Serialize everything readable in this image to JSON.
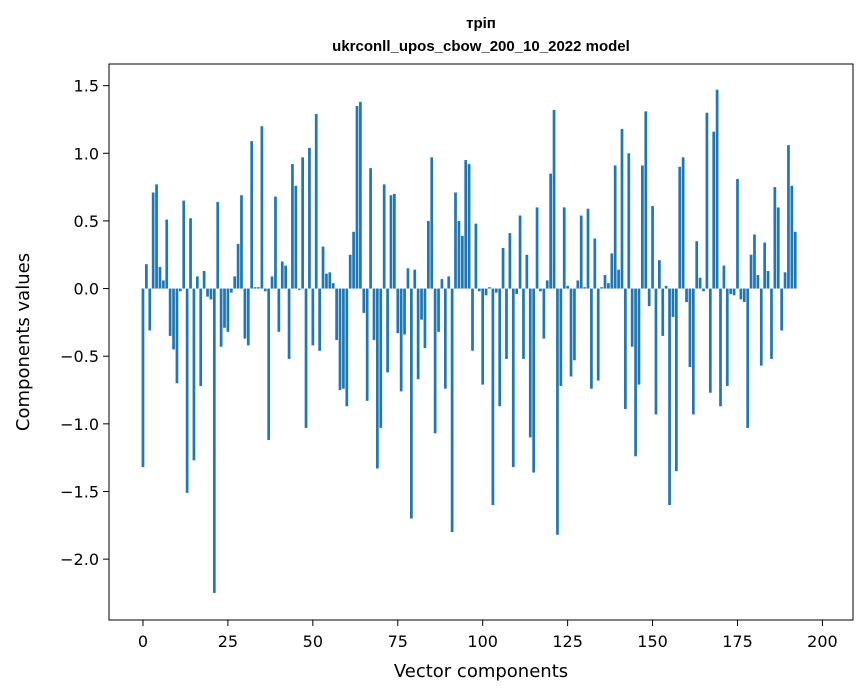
{
  "chart_data": {
    "type": "bar",
    "title": "тріп",
    "subtitle": "ukrconll_upos_cbow_200_10_2022 model",
    "xlabel": "Vector components",
    "ylabel": "Components values",
    "xlim": [
      -10,
      209
    ],
    "ylim": [
      -2.45,
      1.66
    ],
    "xticks": [
      0,
      25,
      50,
      75,
      100,
      125,
      150,
      175,
      200
    ],
    "xtick_labels": [
      "0",
      "25",
      "50",
      "75",
      "100",
      "125",
      "150",
      "175",
      "200"
    ],
    "yticks": [
      1.5,
      1.0,
      0.5,
      0.0,
      -0.5,
      -1.0,
      -1.5,
      -2.0
    ],
    "ytick_labels": [
      "1.5",
      "1.0",
      "0.5",
      "0.0",
      "−0.5",
      "−1.0",
      "−1.5",
      "−2.0"
    ],
    "bar_color": "#1f77b4",
    "grid": false,
    "series": [
      {
        "values": [
          -1.32,
          0.18,
          -0.31,
          0.71,
          0.77,
          0.16,
          0.06,
          0.51,
          -0.35,
          -0.45,
          -0.7,
          -0.02,
          0.65,
          -1.51,
          0.52,
          -1.27,
          0.09,
          -0.72,
          0.13,
          -0.06,
          -0.08,
          -2.25,
          0.64,
          -0.43,
          -0.29,
          -0.32,
          -0.03,
          0.09,
          0.33,
          0.69,
          -0.37,
          -0.42,
          1.09,
          0.01,
          0.01,
          1.2,
          -0.02,
          -1.12,
          0.09,
          0.68,
          -0.32,
          0.2,
          0.17,
          -0.52,
          0.92,
          0.76,
          -0.01,
          0.97,
          -1.03,
          1.04,
          -0.42,
          1.29,
          -0.46,
          0.31,
          0.11,
          0.12,
          0.04,
          -0.38,
          -0.75,
          -0.74,
          -0.87,
          0.25,
          0.42,
          1.35,
          1.38,
          -0.18,
          -0.83,
          0.89,
          -0.38,
          -1.33,
          -1.03,
          0.77,
          -0.62,
          0.69,
          0.7,
          -0.33,
          -0.76,
          -0.34,
          0.15,
          -1.7,
          0.14,
          -0.67,
          -0.23,
          -0.44,
          0.5,
          0.97,
          -1.07,
          -0.32,
          0.07,
          -0.74,
          0.09,
          -1.8,
          0.71,
          0.5,
          0.39,
          0.95,
          0.92,
          -0.46,
          0.48,
          -0.02,
          -0.71,
          -0.05,
          0.01,
          -1.6,
          -0.03,
          -0.87,
          0.3,
          -0.52,
          0.41,
          -1.32,
          -0.04,
          0.54,
          -0.52,
          0.25,
          -1.1,
          -1.36,
          0.6,
          -0.02,
          -0.37,
          0.06,
          0.85,
          1.32,
          -1.82,
          -0.72,
          0.6,
          0.02,
          -0.65,
          -0.53,
          0.06,
          0.54,
          0.01,
          0.59,
          -0.74,
          0.37,
          -0.68,
          0.01,
          0.1,
          0.04,
          0.26,
          0.91,
          0.14,
          1.18,
          -0.89,
          1.0,
          -0.43,
          -1.24,
          -0.71,
          0.91,
          1.31,
          -0.13,
          0.61,
          -0.93,
          0.21,
          -0.35,
          0.02,
          -1.6,
          -0.21,
          -1.35,
          0.9,
          0.97,
          -0.1,
          -0.58,
          -0.93,
          0.35,
          0.08,
          -0.02,
          1.3,
          -0.77,
          1.16,
          1.47,
          -0.87,
          0.17,
          -0.72,
          -0.04,
          -0.05,
          0.81,
          -0.08,
          -0.1,
          -1.03,
          0.25,
          0.4,
          0.1,
          -0.57,
          0.34,
          0.13,
          -0.52,
          0.75,
          0.6,
          -0.31,
          0.12,
          1.06,
          0.76,
          0.42
        ]
      }
    ]
  }
}
